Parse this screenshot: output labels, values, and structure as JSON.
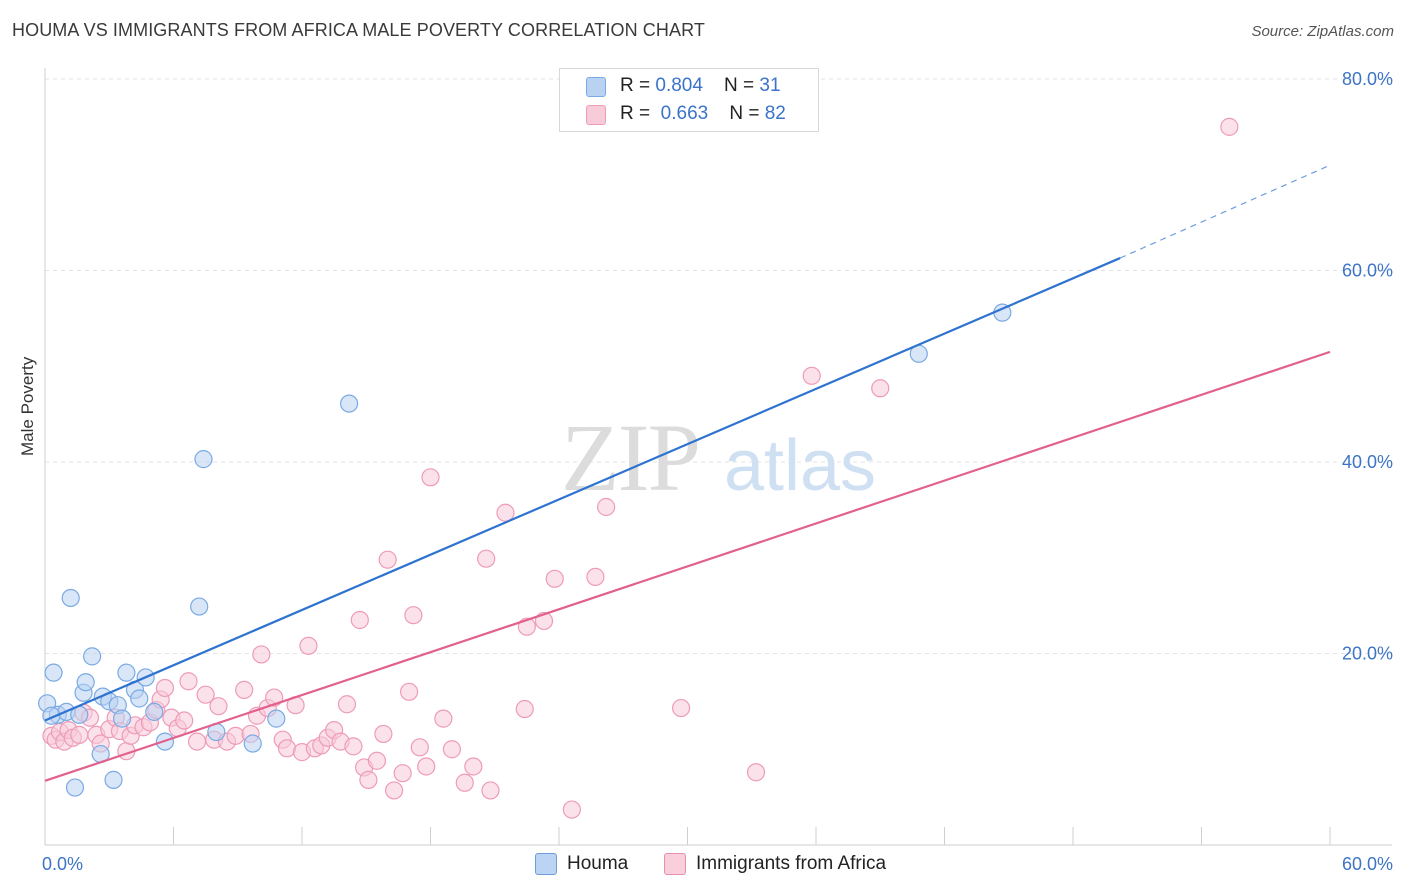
{
  "header": {
    "title": "HOUMA VS IMMIGRANTS FROM AFRICA MALE POVERTY CORRELATION CHART",
    "source": "Source: ZipAtlas.com"
  },
  "watermark": {
    "zip": "ZIP",
    "atlas": "atlas"
  },
  "legend": {
    "rows": [
      {
        "r_label": "R = ",
        "r_value": "0.804",
        "n_label": "N = ",
        "n_value": "31",
        "color": "#a7c7ef",
        "stroke": "#6f9fd8"
      },
      {
        "r_label": "R = ",
        "r_value": "0.663",
        "n_label": "N = ",
        "n_value": "82",
        "color": "#f7bfd1",
        "stroke": "#e98fae"
      }
    ]
  },
  "bottom_legend": [
    {
      "label": "Houma",
      "color": "#bcd4f3",
      "stroke": "#6f9fd8"
    },
    {
      "label": "Immigrants from Africa",
      "color": "#f9cfdc",
      "stroke": "#e98fae"
    }
  ],
  "chart_data": {
    "type": "scatter",
    "title": "HOUMA VS IMMIGRANTS FROM AFRICA MALE POVERTY CORRELATION CHART",
    "xlabel": "",
    "ylabel": "Male Poverty",
    "xlim": [
      0,
      60
    ],
    "ylim": [
      0,
      80
    ],
    "x_tick_labels": [
      "0.0%",
      "60.0%"
    ],
    "y_ticks": [
      20,
      40,
      60,
      80
    ],
    "y_tick_labels": [
      "20.0%",
      "40.0%",
      "60.0%",
      "80.0%"
    ],
    "grid": true,
    "legend_position": "top-center",
    "series": [
      {
        "name": "Houma",
        "color": "#7aaae3",
        "fill": "#b9d2f2",
        "line_color": "#2f73d0",
        "trend": {
          "x0": 0,
          "y0": 13.0,
          "x1": 50.2,
          "y1": 61.3,
          "dash_to_x": 60,
          "dash_to_y": 71.0
        },
        "points": [
          [
            0.1,
            14.8
          ],
          [
            0.4,
            18.0
          ],
          [
            0.6,
            13.6
          ],
          [
            1.0,
            13.9
          ],
          [
            1.2,
            25.8
          ],
          [
            1.4,
            6.0
          ],
          [
            1.6,
            13.6
          ],
          [
            1.8,
            15.9
          ],
          [
            1.9,
            17.0
          ],
          [
            2.2,
            19.7
          ],
          [
            2.6,
            9.5
          ],
          [
            2.7,
            15.5
          ],
          [
            3.0,
            15.0
          ],
          [
            3.2,
            6.8
          ],
          [
            3.4,
            14.6
          ],
          [
            3.6,
            13.2
          ],
          [
            3.8,
            18.0
          ],
          [
            4.2,
            16.2
          ],
          [
            4.4,
            15.3
          ],
          [
            4.7,
            17.5
          ],
          [
            5.1,
            13.9
          ],
          [
            5.6,
            10.8
          ],
          [
            7.2,
            24.9
          ],
          [
            7.4,
            40.3
          ],
          [
            8.0,
            11.8
          ],
          [
            9.7,
            10.6
          ],
          [
            10.8,
            13.2
          ],
          [
            14.2,
            46.1
          ],
          [
            40.8,
            51.3
          ],
          [
            44.7,
            55.6
          ],
          [
            0.3,
            13.5
          ]
        ]
      },
      {
        "name": "Immigrants from Africa",
        "color": "#ee9bb8",
        "fill": "#f8cbd9",
        "line_color": "#e2608e",
        "trend": {
          "x0": 0,
          "y0": 6.7,
          "x1": 60,
          "y1": 51.5
        },
        "points": [
          [
            0.3,
            11.4
          ],
          [
            0.5,
            11.0
          ],
          [
            0.7,
            11.8
          ],
          [
            0.9,
            10.8
          ],
          [
            1.1,
            12.0
          ],
          [
            1.3,
            11.2
          ],
          [
            1.6,
            11.5
          ],
          [
            1.8,
            13.8
          ],
          [
            2.1,
            13.3
          ],
          [
            2.4,
            11.5
          ],
          [
            2.6,
            10.6
          ],
          [
            3.0,
            12.1
          ],
          [
            3.3,
            13.3
          ],
          [
            3.5,
            11.9
          ],
          [
            3.8,
            9.8
          ],
          [
            4.0,
            11.4
          ],
          [
            4.2,
            12.5
          ],
          [
            4.6,
            12.3
          ],
          [
            4.9,
            12.8
          ],
          [
            5.2,
            14.1
          ],
          [
            5.4,
            15.2
          ],
          [
            5.6,
            16.4
          ],
          [
            5.9,
            13.3
          ],
          [
            6.2,
            12.2
          ],
          [
            6.5,
            13.0
          ],
          [
            6.7,
            17.1
          ],
          [
            7.1,
            10.8
          ],
          [
            7.5,
            15.7
          ],
          [
            7.9,
            11.0
          ],
          [
            8.1,
            14.5
          ],
          [
            8.5,
            10.8
          ],
          [
            8.9,
            11.4
          ],
          [
            9.3,
            16.2
          ],
          [
            9.6,
            11.6
          ],
          [
            9.9,
            13.5
          ],
          [
            10.1,
            19.9
          ],
          [
            10.4,
            14.3
          ],
          [
            10.7,
            15.4
          ],
          [
            11.1,
            11.0
          ],
          [
            11.3,
            10.1
          ],
          [
            11.7,
            14.6
          ],
          [
            12.0,
            9.7
          ],
          [
            12.3,
            20.8
          ],
          [
            12.6,
            10.1
          ],
          [
            12.9,
            10.4
          ],
          [
            13.2,
            11.2
          ],
          [
            13.5,
            12.0
          ],
          [
            13.8,
            10.8
          ],
          [
            14.1,
            14.7
          ],
          [
            14.4,
            10.3
          ],
          [
            14.7,
            23.5
          ],
          [
            14.9,
            8.1
          ],
          [
            15.1,
            6.8
          ],
          [
            15.5,
            8.8
          ],
          [
            15.8,
            11.6
          ],
          [
            16.0,
            29.8
          ],
          [
            16.3,
            5.7
          ],
          [
            16.7,
            7.5
          ],
          [
            17.0,
            16.0
          ],
          [
            17.2,
            24.0
          ],
          [
            17.5,
            10.2
          ],
          [
            17.8,
            8.2
          ],
          [
            18.0,
            38.4
          ],
          [
            18.6,
            13.2
          ],
          [
            19.0,
            10.0
          ],
          [
            19.6,
            6.5
          ],
          [
            20.0,
            8.2
          ],
          [
            20.6,
            29.9
          ],
          [
            20.8,
            5.7
          ],
          [
            21.5,
            34.7
          ],
          [
            22.5,
            22.8
          ],
          [
            23.3,
            23.4
          ],
          [
            23.8,
            27.8
          ],
          [
            24.6,
            3.7
          ],
          [
            25.7,
            28.0
          ],
          [
            26.2,
            35.3
          ],
          [
            29.7,
            14.3
          ],
          [
            33.2,
            7.6
          ],
          [
            35.8,
            49.0
          ],
          [
            39.0,
            47.7
          ],
          [
            55.3,
            75.0
          ],
          [
            22.4,
            14.2
          ]
        ]
      }
    ]
  }
}
